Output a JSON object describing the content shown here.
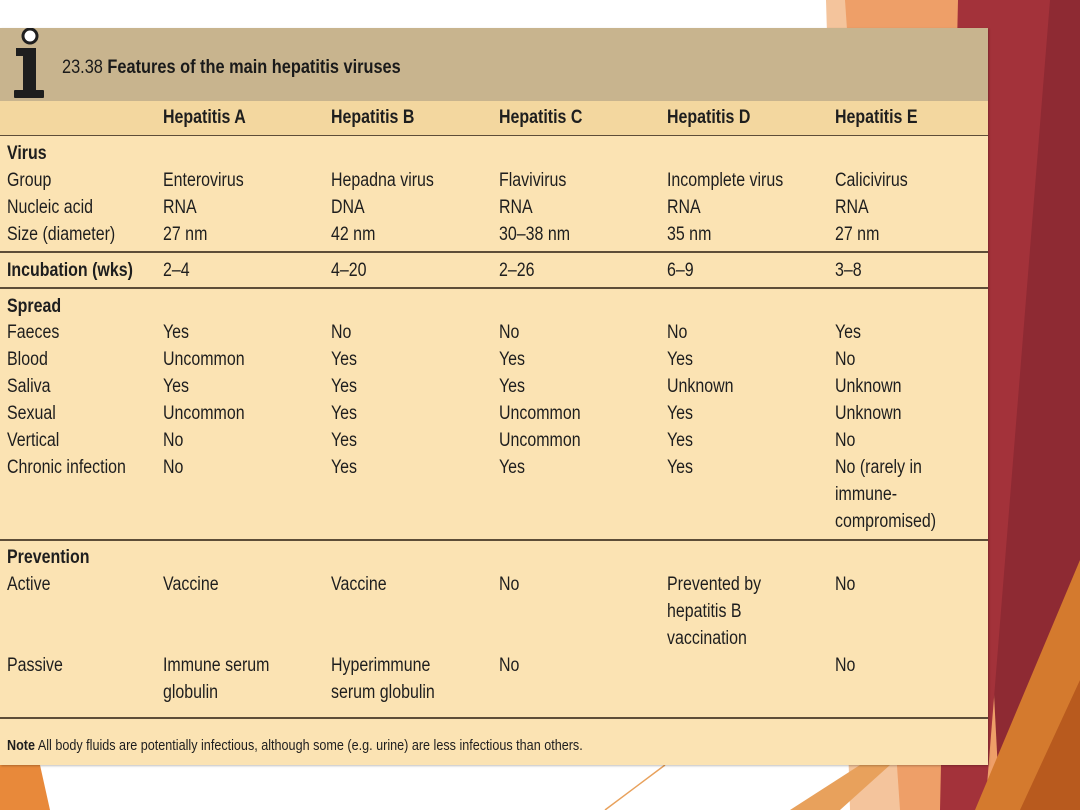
{
  "table": {
    "number": "23.38",
    "title": "Features of the main hepatitis viruses",
    "columns": [
      "Hepatitis A",
      "Hepatitis B",
      "Hepatitis C",
      "Hepatitis D",
      "Hepatitis E"
    ],
    "virus": {
      "heading": "Virus",
      "rows": [
        {
          "label": "Group",
          "values": [
            "Enterovirus",
            "Hepadna virus",
            "Flavivirus",
            "Incomplete virus",
            "Calicivirus"
          ]
        },
        {
          "label": "Nucleic acid",
          "values": [
            "RNA",
            "DNA",
            "RNA",
            "RNA",
            "RNA"
          ]
        },
        {
          "label": "Size (diameter)",
          "values": [
            "27 nm",
            "42 nm",
            "30–38 nm",
            "35 nm",
            "27 nm"
          ]
        }
      ]
    },
    "incubation": {
      "label": "Incubation (wks)",
      "values": [
        "2–4",
        "4–20",
        "2–26",
        "6–9",
        "3–8"
      ]
    },
    "spread": {
      "heading": "Spread",
      "rows": [
        {
          "label": "Faeces",
          "values": [
            "Yes",
            "No",
            "No",
            "No",
            "Yes"
          ]
        },
        {
          "label": "Blood",
          "values": [
            "Uncommon",
            "Yes",
            "Yes",
            "Yes",
            "No"
          ]
        },
        {
          "label": "Saliva",
          "values": [
            "Yes",
            "Yes",
            "Yes",
            "Unknown",
            "Unknown"
          ]
        },
        {
          "label": "Sexual",
          "values": [
            "Uncommon",
            "Yes",
            "Uncommon",
            "Yes",
            "Unknown"
          ]
        },
        {
          "label": "Vertical",
          "values": [
            "No",
            "Yes",
            "Uncommon",
            "Yes",
            "No"
          ]
        },
        {
          "label": "Chronic infection",
          "values": [
            "No",
            "Yes",
            "Yes",
            "Yes",
            "No (rarely in"
          ]
        }
      ],
      "chronic_e_continued": [
        "immune-",
        "compromised)"
      ]
    },
    "prevention": {
      "heading": "Prevention",
      "active": {
        "label": "Active",
        "values": [
          "Vaccine",
          "Vaccine",
          "No",
          "Prevented by",
          "No"
        ],
        "d_continued": [
          "hepatitis B",
          "vaccination"
        ]
      },
      "passive": {
        "label": "Passive",
        "values": [
          "Immune serum",
          "Hyperimmune",
          "No",
          "",
          "No"
        ],
        "continued": [
          "globulin",
          "serum globulin"
        ]
      }
    },
    "note": {
      "label": "Note",
      "text": "All body fluids are potentially infectious, although some (e.g. urine) are less infectious than others."
    }
  },
  "colors": {
    "panel": "#fbe3b3",
    "titlebar": "#c8b48e",
    "header": "#f3d79f",
    "accent_dark": "#8a2430",
    "accent_orange": "#e08a3c"
  }
}
